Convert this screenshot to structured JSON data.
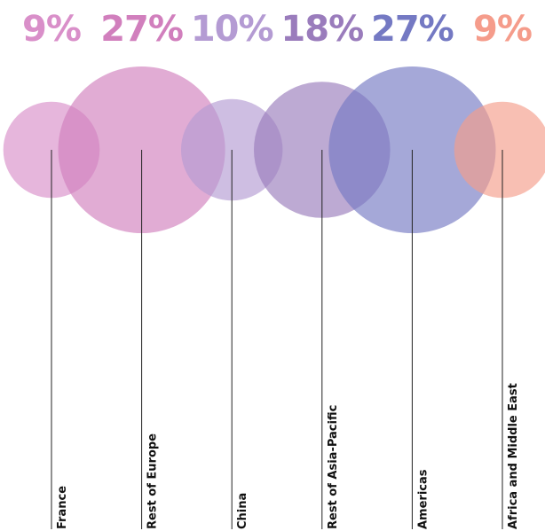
{
  "chart_data": {
    "type": "bubble",
    "categories": [
      "France",
      "Rest of Europe",
      "China",
      "Rest of Asia-Pacific",
      "Americas",
      "Africa and Middle East"
    ],
    "values": [
      9,
      27,
      10,
      18,
      27,
      9
    ],
    "value_labels": [
      "9%",
      "27%",
      "10%",
      "18%",
      "27%",
      "9%"
    ],
    "colors": [
      "#d98fc9",
      "#d17fbd",
      "#b49bd3",
      "#9a7cbc",
      "#7479c3",
      "#f59c8b"
    ]
  }
}
